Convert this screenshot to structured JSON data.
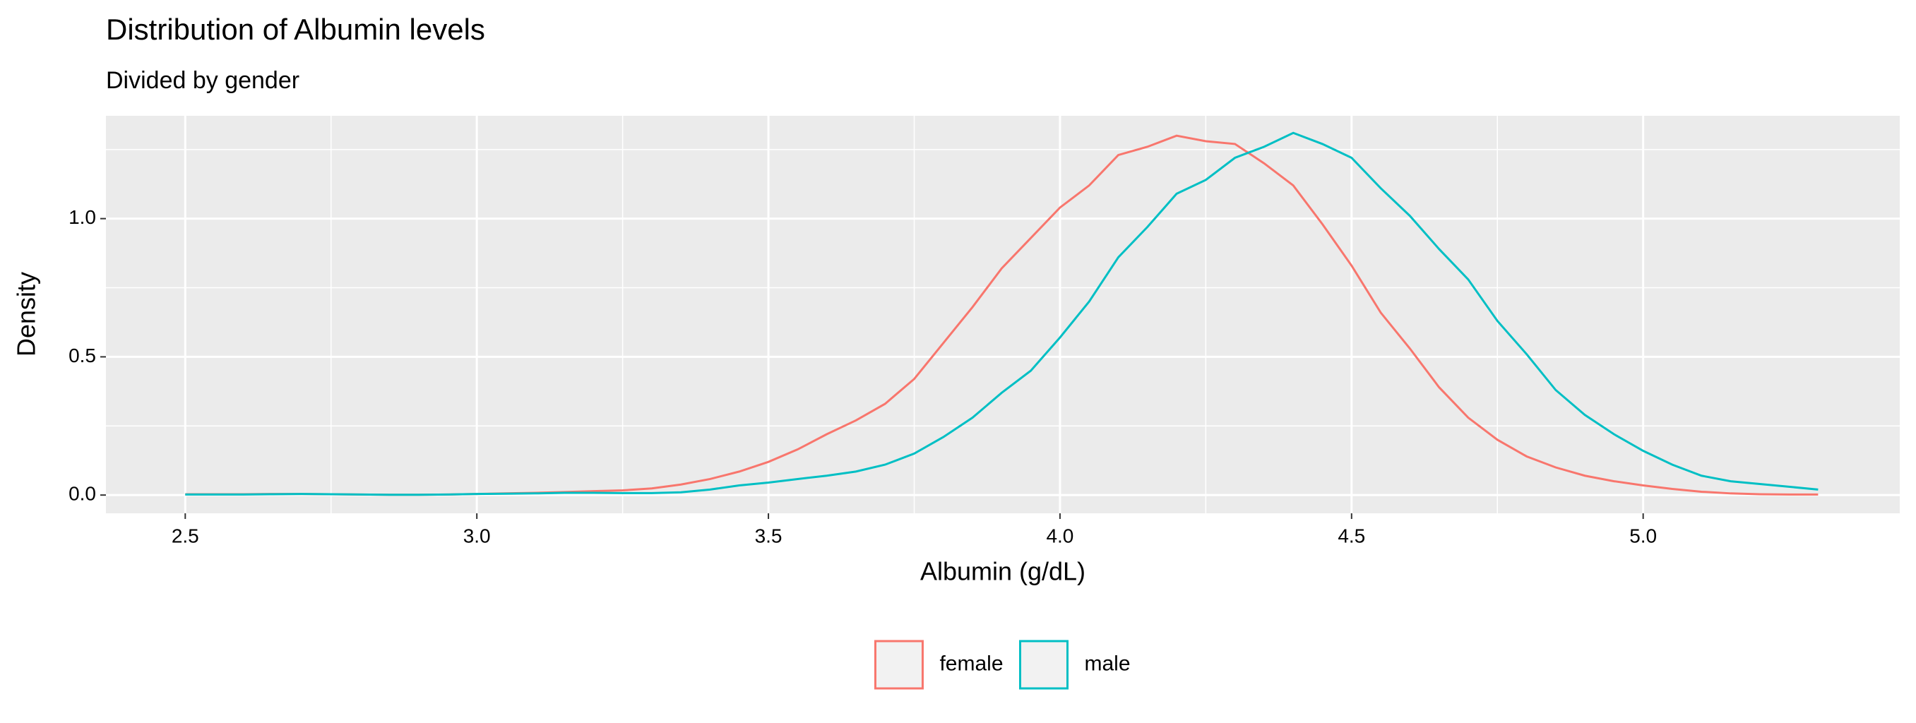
{
  "chart_data": {
    "type": "line",
    "title": "Distribution of Albumin levels",
    "subtitle": "Divided by gender",
    "x_label": "Albumin (g/dL)",
    "y_label": "Density",
    "x": [
      2.5,
      2.55,
      2.6,
      2.65,
      2.7,
      2.75,
      2.8,
      2.85,
      2.9,
      2.95,
      3.0,
      3.05,
      3.1,
      3.15,
      3.2,
      3.25,
      3.3,
      3.35,
      3.4,
      3.45,
      3.5,
      3.55,
      3.6,
      3.65,
      3.7,
      3.75,
      3.8,
      3.85,
      3.9,
      3.95,
      4.0,
      4.05,
      4.1,
      4.15,
      4.2,
      4.25,
      4.3,
      4.35,
      4.4,
      4.45,
      4.5,
      4.55,
      4.6,
      4.65,
      4.7,
      4.75,
      4.8,
      4.85,
      4.9,
      4.95,
      5.0,
      5.05,
      5.1,
      5.15,
      5.2,
      5.25,
      5.3
    ],
    "series": [
      {
        "name": "female",
        "color": "#f8766d",
        "values": [
          0.003,
          0.003,
          0.003,
          0.004,
          0.004,
          0.003,
          0.002,
          0.001,
          0.001,
          0.002,
          0.004,
          0.006,
          0.008,
          0.011,
          0.014,
          0.017,
          0.024,
          0.038,
          0.058,
          0.085,
          0.12,
          0.165,
          0.22,
          0.27,
          0.33,
          0.42,
          0.55,
          0.68,
          0.82,
          0.93,
          1.04,
          1.12,
          1.23,
          1.26,
          1.3,
          1.28,
          1.27,
          1.2,
          1.12,
          0.98,
          0.83,
          0.66,
          0.53,
          0.39,
          0.28,
          0.2,
          0.14,
          0.1,
          0.07,
          0.05,
          0.035,
          0.022,
          0.012,
          0.006,
          0.003,
          0.002,
          0.002
        ]
      },
      {
        "name": "male",
        "color": "#00bfc4",
        "values": [
          0.002,
          0.002,
          0.002,
          0.003,
          0.004,
          0.003,
          0.002,
          0.001,
          0.001,
          0.002,
          0.004,
          0.005,
          0.006,
          0.008,
          0.008,
          0.007,
          0.007,
          0.01,
          0.02,
          0.035,
          0.045,
          0.058,
          0.07,
          0.085,
          0.11,
          0.15,
          0.21,
          0.28,
          0.37,
          0.45,
          0.57,
          0.7,
          0.86,
          0.97,
          1.09,
          1.14,
          1.22,
          1.26,
          1.31,
          1.27,
          1.22,
          1.11,
          1.01,
          0.89,
          0.78,
          0.63,
          0.51,
          0.38,
          0.29,
          0.22,
          0.16,
          0.11,
          0.07,
          0.05,
          0.04,
          0.03,
          0.02
        ]
      }
    ],
    "xlim": [
      2.364,
      5.44
    ],
    "ylim": [
      -0.066,
      1.372
    ],
    "xticks": [
      2.5,
      {
        "value": 3,
        "label": "3.0"
      },
      3.5,
      {
        "value": 4,
        "label": "4.0"
      },
      4.5,
      {
        "value": 5,
        "label": "5.0"
      }
    ],
    "yticks": [
      {
        "value": 0,
        "label": "0.0"
      },
      0.5,
      {
        "value": 1,
        "label": "1.0"
      }
    ],
    "grid": true,
    "legend_position": "bottom"
  }
}
